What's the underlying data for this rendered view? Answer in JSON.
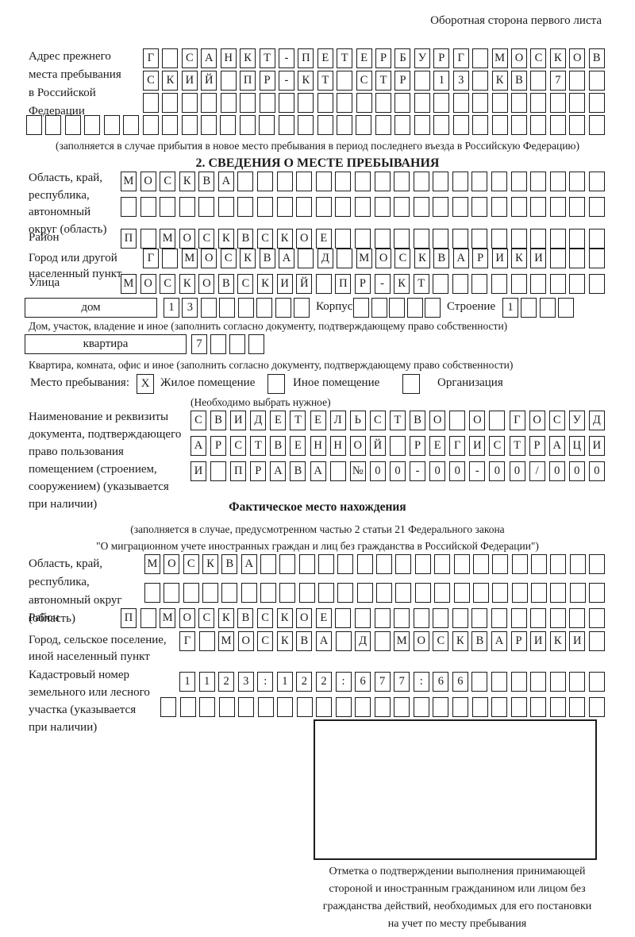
{
  "header": {
    "note": "Оборотная сторона первого листа"
  },
  "prev_address": {
    "label_lines": [
      "Адрес прежнего",
      "места пребывания",
      "в Российской",
      "Федерации"
    ],
    "rows": [
      {
        "chars": "Г САНКТ-ПЕТЕРБУРГ МОСКОВ",
        "count": 24
      },
      {
        "chars": "СКИЙ ПР-КТ СТР 13 КВ 7",
        "count": 24
      },
      {
        "chars": "",
        "count": 24
      },
      {
        "chars": "",
        "count": 30
      }
    ],
    "caption": "(заполняется в случае прибытия в новое место пребывания в период последнего въезда в Российскую Федерацию)"
  },
  "section2": {
    "title": "2. СВЕДЕНИЯ О МЕСТЕ ПРЕБЫВАНИЯ",
    "region": {
      "label_lines": [
        "Область, край,",
        "республика,",
        "автономный",
        "округ (область)"
      ],
      "rows": [
        {
          "chars": "МОСКВА",
          "count": 25
        },
        {
          "chars": "",
          "count": 25
        }
      ]
    },
    "district": {
      "label": "Район",
      "row": {
        "chars": "П МОСКВСКОЕ",
        "count": 25
      }
    },
    "city": {
      "label_lines": [
        "Город или другой",
        "населенный пункт"
      ],
      "row": {
        "chars": "Г МОСКВА Д МОСКВАРИКИ",
        "count": 24
      }
    },
    "street": {
      "label": "Улица",
      "row": {
        "chars": "МОСКОВСКИЙ ПР-КТ",
        "count": 25
      }
    },
    "house": {
      "field_label": "дом",
      "number_row": {
        "chars": "13",
        "count": 8
      },
      "korpus_label": "Корпус",
      "korpus_row": {
        "chars": "",
        "count": 5
      },
      "stroenie_label": "Строение",
      "stroenie_row": {
        "chars": "1",
        "count": 4
      },
      "caption": "Дом, участок, владение и иное (заполнить согласно документу, подтверждающему право собственности)"
    },
    "apartment": {
      "field_label": "квартира",
      "number_row": {
        "chars": "7",
        "count": 4
      },
      "caption": "Квартира, комната, офис и иное (заполнить согласно документу, подтверждающему право собственности)"
    },
    "stay_place": {
      "label": "Место пребывания:",
      "options": [
        {
          "label": "Жилое помещение",
          "mark": "X"
        },
        {
          "label": "Иное помещение",
          "mark": ""
        },
        {
          "label": "Организация",
          "mark": ""
        }
      ],
      "caption": "(Необходимо выбрать нужное)"
    },
    "right_document": {
      "label_lines": [
        "Наименование и реквизиты",
        "документа, подтверждающего",
        "право пользования",
        "помещением (строением,",
        "сооружением) (указывается",
        "при наличии)"
      ],
      "rows": [
        {
          "chars": "СВИДЕТЕЛЬСТВО О ГОСУД",
          "count": 21
        },
        {
          "chars": "АРСТВЕННОЙ РЕГИСТРАЦИ",
          "count": 21
        },
        {
          "chars": "И ПРАВА №00-00-00/000",
          "count": 21
        }
      ]
    }
  },
  "actual_location": {
    "title": "Фактическое место нахождения",
    "caption_lines": [
      "(заполняется в случае, предусмотренном частью 2 статьи 21 Федерального закона",
      "\"О миграционном учете иностранных граждан и лиц без гражданства в Российской Федерации\")"
    ],
    "region": {
      "label_lines": [
        "Область, край,",
        "республика,",
        "автономный округ",
        "(область)"
      ],
      "rows": [
        {
          "chars": "МОСКВА",
          "count": 24
        },
        {
          "chars": "",
          "count": 24
        }
      ]
    },
    "district": {
      "label": "Район",
      "row": {
        "chars": "П МОСКВСКОЕ",
        "count": 25
      }
    },
    "city": {
      "label_lines": [
        "Город, сельское поселение,",
        "иной населенный пункт"
      ],
      "row": {
        "chars": "Г МОСКВА Д МОСКВАРИКИ",
        "count": 22
      }
    },
    "cadastre": {
      "label_lines": [
        "Кадастровый номер",
        "земельного или лесного",
        "участка (указывается",
        "при наличии)"
      ],
      "rows": [
        {
          "chars": "1123:122:677:66",
          "count": 22
        },
        {
          "chars": "",
          "count": 23
        }
      ]
    },
    "mark": {
      "caption_lines": [
        "Отметка о подтверждении выполнения принимающей",
        "стороной и иностранным гражданином или лицом без",
        "гражданства действий, необходимых для его постановки",
        "на учет по месту пребывания"
      ]
    }
  }
}
